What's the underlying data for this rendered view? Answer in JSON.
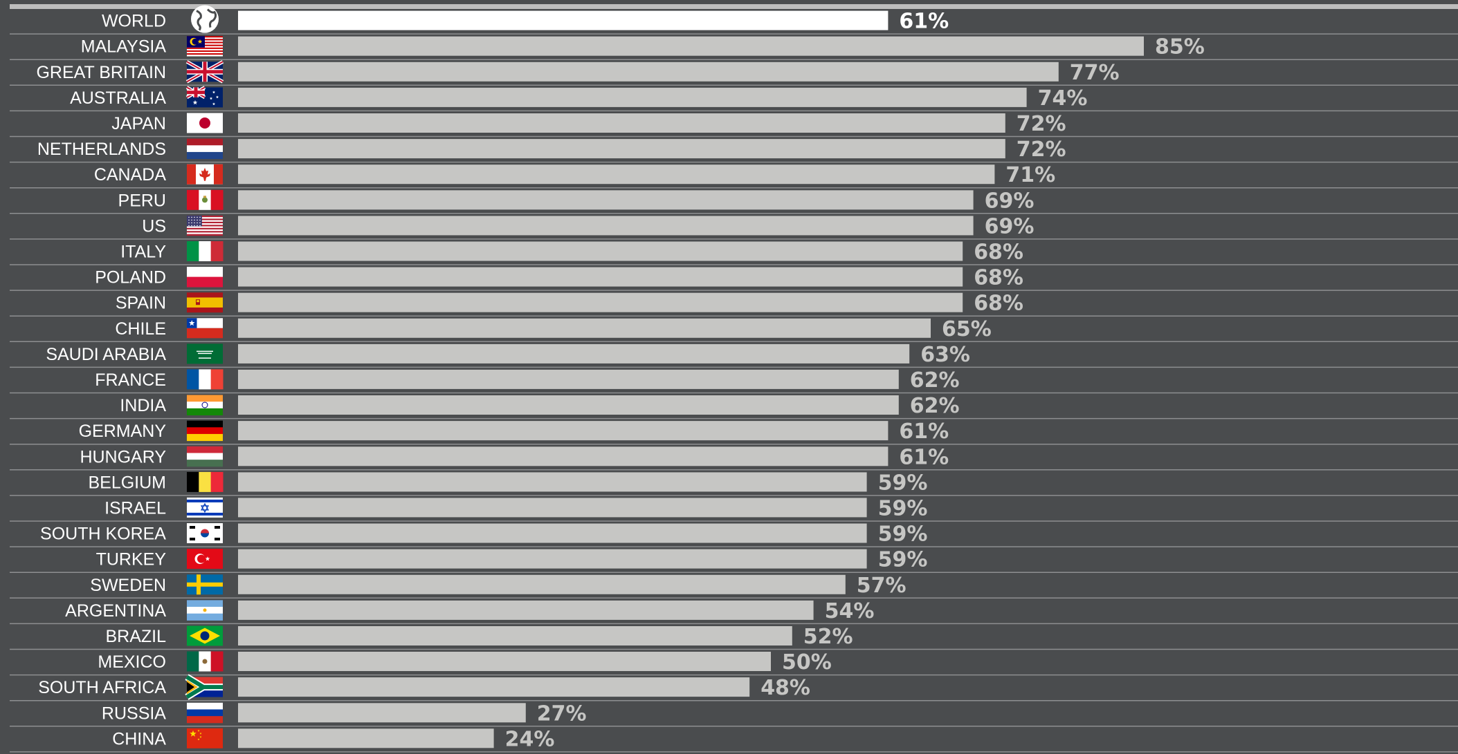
{
  "chart_data": {
    "type": "bar",
    "orientation": "horizontal",
    "title": "",
    "xlabel": "",
    "ylabel": "",
    "xlim": [
      0,
      100
    ],
    "grid": "horizontal row separators",
    "categories": [
      "WORLD",
      "MALAYSIA",
      "GREAT BRITAIN",
      "AUSTRALIA",
      "JAPAN",
      "NETHERLANDS",
      "CANADA",
      "PERU",
      "US",
      "ITALY",
      "POLAND",
      "SPAIN",
      "CHILE",
      "SAUDI ARABIA",
      "FRANCE",
      "INDIA",
      "GERMANY",
      "HUNGARY",
      "BELGIUM",
      "ISRAEL",
      "SOUTH KOREA",
      "TURKEY",
      "SWEDEN",
      "ARGENTINA",
      "BRAZIL",
      "MEXICO",
      "SOUTH AFRICA",
      "RUSSIA",
      "CHINA"
    ],
    "values": [
      61,
      85,
      77,
      74,
      72,
      72,
      71,
      69,
      69,
      68,
      68,
      68,
      65,
      63,
      62,
      62,
      61,
      61,
      59,
      59,
      59,
      59,
      57,
      54,
      52,
      50,
      48,
      27,
      24
    ],
    "value_labels": [
      "61%",
      "85%",
      "77%",
      "74%",
      "72%",
      "72%",
      "71%",
      "69%",
      "69%",
      "68%",
      "68%",
      "68%",
      "65%",
      "63%",
      "62%",
      "62%",
      "61%",
      "61%",
      "59%",
      "59%",
      "59%",
      "59%",
      "57%",
      "54%",
      "52%",
      "50%",
      "48%",
      "27%",
      "24%"
    ],
    "icons": [
      "globe-icon",
      "flag-malaysia-icon",
      "flag-great-britain-icon",
      "flag-australia-icon",
      "flag-japan-icon",
      "flag-netherlands-icon",
      "flag-canada-icon",
      "flag-peru-icon",
      "flag-us-icon",
      "flag-italy-icon",
      "flag-poland-icon",
      "flag-spain-icon",
      "flag-chile-icon",
      "flag-saudi-arabia-icon",
      "flag-france-icon",
      "flag-india-icon",
      "flag-germany-icon",
      "flag-hungary-icon",
      "flag-belgium-icon",
      "flag-israel-icon",
      "flag-south-korea-icon",
      "flag-turkey-icon",
      "flag-sweden-icon",
      "flag-argentina-icon",
      "flag-brazil-icon",
      "flag-mexico-icon",
      "flag-south-africa-icon",
      "flag-russia-icon",
      "flag-china-icon"
    ],
    "highlight_category": "WORLD",
    "colors": {
      "background": "#4a4c4e",
      "bar": "#c6c6c4",
      "highlight_bar": "#ffffff",
      "value_text": "#c6c6c4",
      "highlight_value_text": "#ffffff",
      "label_text": "#ffffff",
      "row_line": "#8e8f91",
      "top_rule": "#bdbdbd"
    }
  }
}
